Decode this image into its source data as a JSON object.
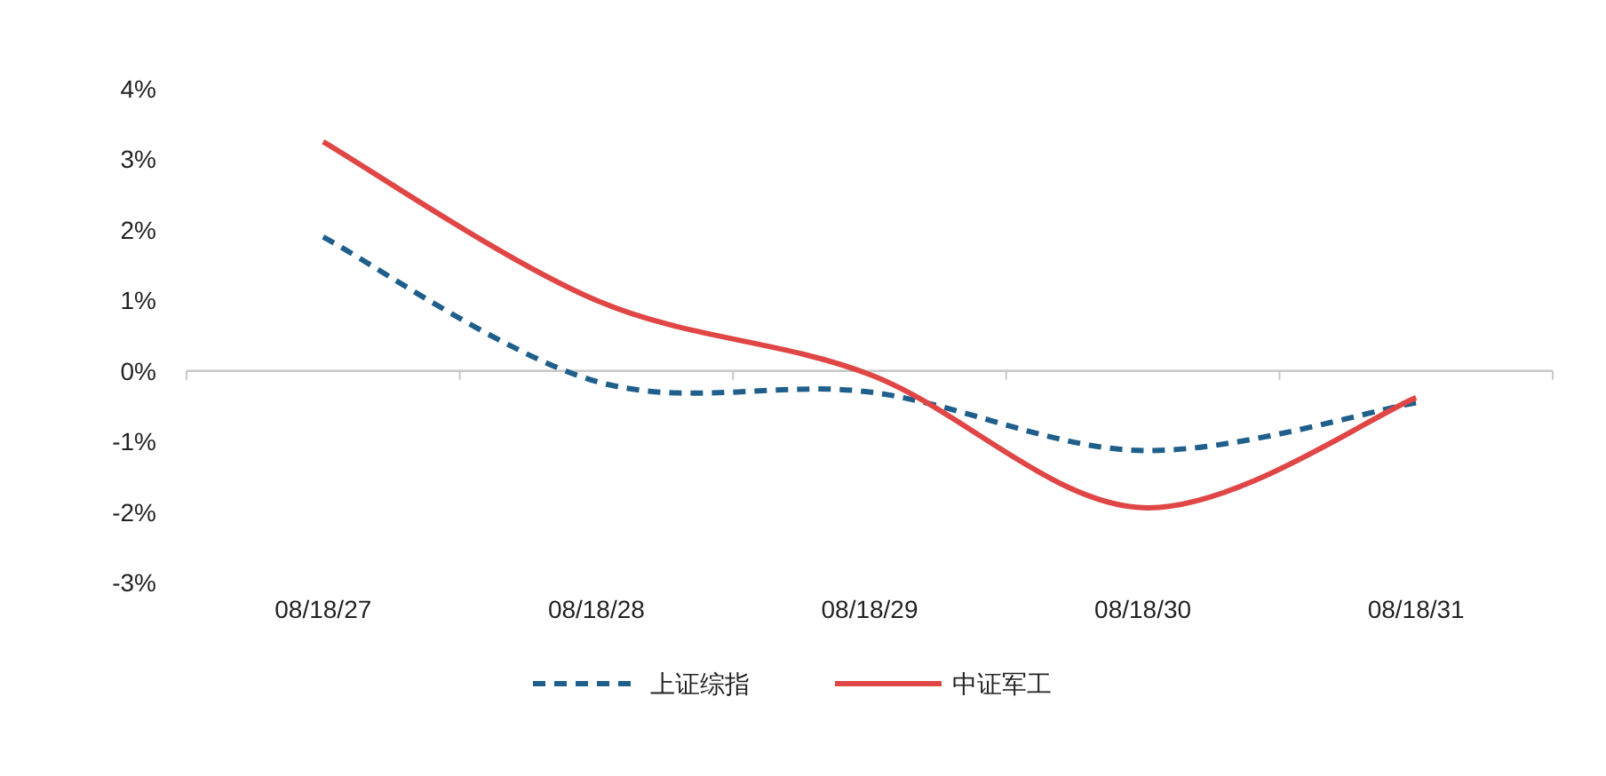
{
  "chart_data": {
    "type": "line",
    "categories": [
      "08/18/27",
      "08/18/28",
      "08/18/29",
      "08/18/30",
      "08/18/31"
    ],
    "series": [
      {
        "name": "上证综指",
        "color": "#1f5f8b",
        "line_style": "dashed",
        "values": [
          1.9,
          -0.15,
          -0.3,
          -1.13,
          -0.45
        ]
      },
      {
        "name": "中证军工",
        "color": "#e04646",
        "line_style": "solid",
        "values": [
          3.25,
          1.0,
          -0.05,
          -1.94,
          -0.38
        ]
      }
    ],
    "ylim": [
      -3,
      4
    ],
    "yticks": [
      {
        "value": -3,
        "label": "-3%"
      },
      {
        "value": -2,
        "label": "-2%"
      },
      {
        "value": -1,
        "label": "-1%"
      },
      {
        "value": 0,
        "label": "0%"
      },
      {
        "value": 1,
        "label": "1%"
      },
      {
        "value": 2,
        "label": "2%"
      },
      {
        "value": 3,
        "label": "3%"
      },
      {
        "value": 4,
        "label": "4%"
      }
    ],
    "legend": "bottom",
    "marker": "none"
  }
}
